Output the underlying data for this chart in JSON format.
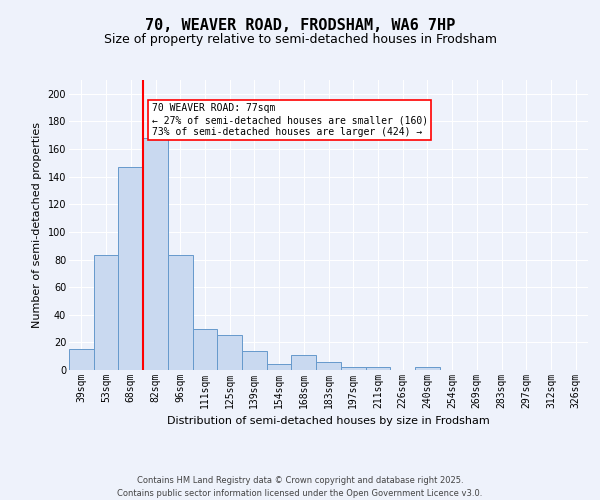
{
  "title1": "70, WEAVER ROAD, FRODSHAM, WA6 7HP",
  "title2": "Size of property relative to semi-detached houses in Frodsham",
  "xlabel": "Distribution of semi-detached houses by size in Frodsham",
  "ylabel": "Number of semi-detached properties",
  "categories": [
    "39sqm",
    "53sqm",
    "68sqm",
    "82sqm",
    "96sqm",
    "111sqm",
    "125sqm",
    "139sqm",
    "154sqm",
    "168sqm",
    "183sqm",
    "197sqm",
    "211sqm",
    "226sqm",
    "240sqm",
    "254sqm",
    "269sqm",
    "283sqm",
    "297sqm",
    "312sqm",
    "326sqm"
  ],
  "values": [
    15,
    83,
    147,
    168,
    83,
    30,
    25,
    14,
    4,
    11,
    6,
    2,
    2,
    0,
    2,
    0,
    0,
    0,
    0,
    0,
    0
  ],
  "bar_color": "#c9d9f0",
  "bar_edge_color": "#6699cc",
  "vline_x_idx": 3,
  "vline_color": "red",
  "annotation_text": "70 WEAVER ROAD: 77sqm\n← 27% of semi-detached houses are smaller (160)\n73% of semi-detached houses are larger (424) →",
  "ylim": [
    0,
    210
  ],
  "yticks": [
    0,
    20,
    40,
    60,
    80,
    100,
    120,
    140,
    160,
    180,
    200
  ],
  "bg_color": "#eef2fb",
  "grid_color": "#ffffff",
  "footer": "Contains HM Land Registry data © Crown copyright and database right 2025.\nContains public sector information licensed under the Open Government Licence v3.0.",
  "title_fontsize": 11,
  "subtitle_fontsize": 9,
  "axis_label_fontsize": 8,
  "tick_fontsize": 7,
  "footer_fontsize": 6
}
